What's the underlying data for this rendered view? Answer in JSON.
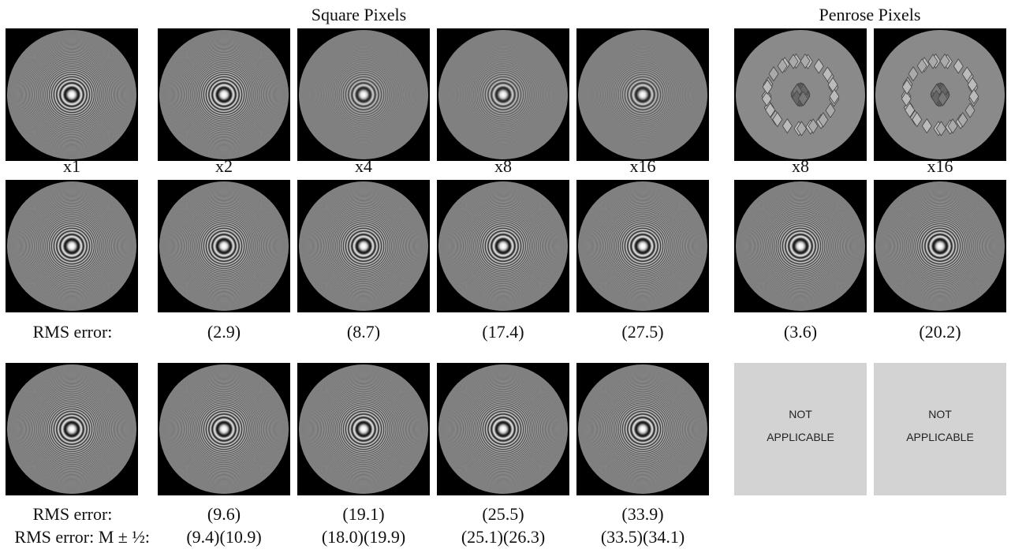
{
  "headers": {
    "square": "Square Pixels",
    "penrose": "Penrose Pixels"
  },
  "row1_labels": [
    "x1",
    "x2",
    "x4",
    "x8",
    "x16",
    "x8",
    "x16"
  ],
  "row2_rms": {
    "label": "RMS error:",
    "values": [
      "(2.9)",
      "(8.7)",
      "(17.4)",
      "(27.5)",
      "(3.6)",
      "(20.2)"
    ]
  },
  "not_applicable": [
    [
      "NOT",
      "APPLICABLE"
    ],
    [
      "NOT",
      "APPLICABLE"
    ]
  ],
  "row3_rms": {
    "label": "RMS error:",
    "values": [
      "(9.6)",
      "(19.1)",
      "(25.5)",
      "(33.9)"
    ]
  },
  "row3_rms_pm": {
    "label": "RMS error: M ± ½:",
    "values": [
      "(9.4)(10.9)",
      "(18.0)(19.9)",
      "(25.1)(26.3)",
      "(33.5)(34.1)"
    ]
  }
}
